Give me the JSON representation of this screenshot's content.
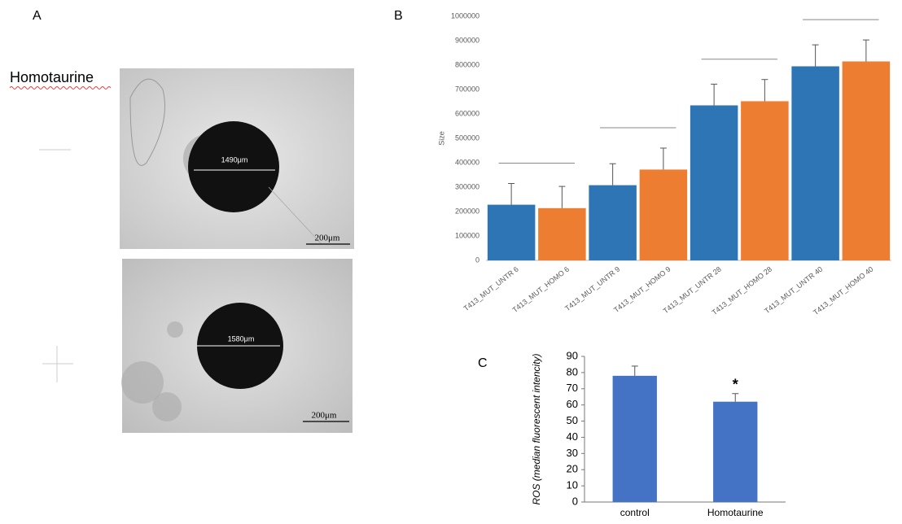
{
  "figure": {
    "panel_labels": [
      "A",
      "B",
      "C"
    ],
    "row_label": "Homotaurine",
    "images": [
      {
        "measurement": "1490μm",
        "scale_bar": "200μm"
      },
      {
        "measurement": "1580μm",
        "scale_bar": "200μm"
      }
    ]
  },
  "chart_data": [
    {
      "type": "bar",
      "ylabel": "Size",
      "categories": [
        "T413_MUT_UNTR 6",
        "T413_MUT_HOMO 6",
        "T413_MUT_UNTR 9",
        "T413_MUT_HOMO 9",
        "T413_MUT_UNTR 28",
        "T413_MUT_HOMO 28",
        "T413_MUT_UNTR 40",
        "T413_MUT_HOMO 40"
      ],
      "values": [
        228000,
        214000,
        308000,
        372000,
        635000,
        652000,
        795000,
        815000
      ],
      "errors": [
        87000,
        89000,
        88000,
        88000,
        87000,
        89000,
        88000,
        88000
      ],
      "colors": [
        "#2e75b6",
        "#ed7d31",
        "#2e75b6",
        "#ed7d31",
        "#2e75b6",
        "#ed7d31",
        "#2e75b6",
        "#ed7d31"
      ],
      "ylim": [
        0,
        1000000
      ],
      "yticks": [
        0,
        100000,
        200000,
        300000,
        400000,
        500000,
        600000,
        700000,
        800000,
        900000,
        1000000
      ]
    },
    {
      "type": "bar",
      "ylabel": "ROS (median fluorescent intencity)",
      "categories": [
        "control",
        "Homotaurine"
      ],
      "values": [
        78,
        62
      ],
      "errors": [
        6,
        5
      ],
      "color": "#4472c4",
      "ylim": [
        0,
        90
      ],
      "yticks": [
        0,
        10,
        20,
        30,
        40,
        50,
        60,
        70,
        80,
        90
      ],
      "annotation": {
        "text": "*",
        "category": "Homotaurine"
      }
    }
  ]
}
